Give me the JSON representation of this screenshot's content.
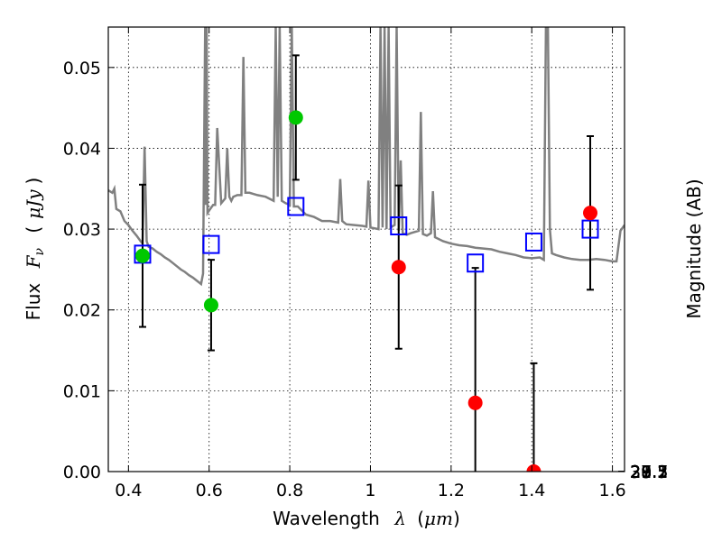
{
  "chart_data": {
    "type": "scatter",
    "xlabel": "Wavelength",
    "xlabel_symbol": "λ",
    "xlabel_unit_open": "(",
    "xlabel_unit": "μm",
    "xlabel_unit_close": ")",
    "ylabel": "Flux",
    "ylabel_symbol": "F",
    "ylabel_subscript": "ν",
    "ylabel_unit_open": "(",
    "ylabel_unit": "μJy",
    "ylabel_unit_close": ")",
    "y2label": "Magnitude (AB)",
    "xlim": [
      0.35,
      1.63
    ],
    "ylim": [
      0.0,
      0.055
    ],
    "grid": true,
    "x_ticks": [
      {
        "value": 0.4,
        "label": "0.4"
      },
      {
        "value": 0.6,
        "label": "0.6"
      },
      {
        "value": 0.8,
        "label": "0.8"
      },
      {
        "value": 1.0,
        "label": "1"
      },
      {
        "value": 1.2,
        "label": "1.2"
      },
      {
        "value": 1.4,
        "label": "1.4"
      },
      {
        "value": 1.6,
        "label": "1.6"
      }
    ],
    "y_ticks": [
      {
        "value": 0.0,
        "label": "0.00"
      },
      {
        "value": 0.01,
        "label": "0.01"
      },
      {
        "value": 0.02,
        "label": "0.02"
      },
      {
        "value": 0.03,
        "label": "0.03"
      },
      {
        "value": 0.04,
        "label": "0.04"
      },
      {
        "value": 0.05,
        "label": "0.05"
      }
    ],
    "y2_ticks": [
      {
        "mag": 27.1,
        "label": "27.1"
      },
      {
        "mag": 27.3,
        "label": "27.3"
      },
      {
        "mag": 27.5,
        "label": "27.5"
      },
      {
        "mag": 27.7,
        "label": "27.7"
      },
      {
        "mag": 28.0,
        "label": "28"
      },
      {
        "mag": 28.2,
        "label": "28.2"
      },
      {
        "mag": 28.5,
        "label": "28.5"
      },
      {
        "mag": 29.0,
        "label": "29"
      },
      {
        "mag": 29.5,
        "label": "29.5"
      },
      {
        "mag": 30.0,
        "label": "30"
      },
      {
        "mag": 31.0,
        "label": "31"
      }
    ],
    "series": [
      {
        "name": "model_spectrum",
        "kind": "line",
        "color": "#808080",
        "x": [
          0.35,
          0.36,
          0.365,
          0.37,
          0.38,
          0.39,
          0.4,
          0.41,
          0.42,
          0.43,
          0.435,
          0.44,
          0.445,
          0.45,
          0.46,
          0.47,
          0.48,
          0.49,
          0.5,
          0.51,
          0.52,
          0.53,
          0.54,
          0.55,
          0.56,
          0.57,
          0.58,
          0.585,
          0.59,
          0.592,
          0.594,
          0.596,
          0.6,
          0.61,
          0.615,
          0.62,
          0.63,
          0.64,
          0.645,
          0.65,
          0.655,
          0.66,
          0.67,
          0.68,
          0.685,
          0.69,
          0.7,
          0.72,
          0.74,
          0.76,
          0.765,
          0.77,
          0.775,
          0.78,
          0.79,
          0.8,
          0.805,
          0.81,
          0.82,
          0.84,
          0.86,
          0.88,
          0.9,
          0.92,
          0.925,
          0.93,
          0.94,
          0.96,
          0.98,
          0.99,
          0.995,
          1.0,
          1.02,
          1.025,
          1.03,
          1.035,
          1.04,
          1.045,
          1.05,
          1.06,
          1.065,
          1.07,
          1.075,
          1.08,
          1.09,
          1.1,
          1.12,
          1.125,
          1.13,
          1.14,
          1.15,
          1.155,
          1.16,
          1.18,
          1.2,
          1.22,
          1.24,
          1.26,
          1.28,
          1.3,
          1.32,
          1.34,
          1.36,
          1.38,
          1.4,
          1.42,
          1.43,
          1.435,
          1.44,
          1.445,
          1.45,
          1.46,
          1.48,
          1.5,
          1.52,
          1.54,
          1.56,
          1.58,
          1.6,
          1.61,
          1.62,
          1.63
        ],
        "y": [
          0.0348,
          0.0345,
          0.035,
          0.0325,
          0.0322,
          0.031,
          0.0305,
          0.0298,
          0.0292,
          0.0285,
          0.0282,
          0.0402,
          0.0285,
          0.0278,
          0.0276,
          0.0272,
          0.0269,
          0.0265,
          0.0262,
          0.0258,
          0.0254,
          0.025,
          0.0247,
          0.0243,
          0.024,
          0.0236,
          0.0232,
          0.0245,
          0.055,
          0.033,
          0.055,
          0.032,
          0.0323,
          0.033,
          0.033,
          0.0425,
          0.0332,
          0.0338,
          0.04,
          0.034,
          0.0335,
          0.034,
          0.0342,
          0.0342,
          0.0513,
          0.0345,
          0.0345,
          0.0342,
          0.034,
          0.0335,
          0.055,
          0.034,
          0.055,
          0.0335,
          0.0332,
          0.033,
          0.055,
          0.0328,
          0.0328,
          0.0318,
          0.0315,
          0.031,
          0.031,
          0.0308,
          0.0362,
          0.031,
          0.0306,
          0.0305,
          0.0304,
          0.0303,
          0.036,
          0.0302,
          0.03,
          0.055,
          0.0302,
          0.055,
          0.03,
          0.055,
          0.0302,
          0.0305,
          0.055,
          0.0298,
          0.0385,
          0.0295,
          0.0293,
          0.0295,
          0.0298,
          0.0445,
          0.0294,
          0.0292,
          0.0295,
          0.0347,
          0.029,
          0.0285,
          0.0282,
          0.028,
          0.0279,
          0.0277,
          0.0276,
          0.0275,
          0.0272,
          0.027,
          0.0268,
          0.0265,
          0.0264,
          0.0265,
          0.0262,
          0.055,
          0.055,
          0.03,
          0.027,
          0.0268,
          0.0265,
          0.0263,
          0.0262,
          0.0262,
          0.0263,
          0.0262,
          0.026,
          0.026,
          0.0298,
          0.0305
        ],
        "values_note": "approximate trace read from figure"
      },
      {
        "name": "model_photometry",
        "kind": "square",
        "color": "#0000ff",
        "x": [
          0.435,
          0.605,
          0.815,
          1.07,
          1.26,
          1.405,
          1.545
        ],
        "values": [
          0.0269,
          0.0281,
          0.0328,
          0.0304,
          0.0258,
          0.0284,
          0.03
        ]
      },
      {
        "name": "detections",
        "kind": "circle",
        "color": "#00c800",
        "x": [
          0.435,
          0.605,
          0.815
        ],
        "values": [
          0.0267,
          0.0206,
          0.0438
        ],
        "err": [
          0.0088,
          0.0056,
          0.0077
        ]
      },
      {
        "name": "upper_bands",
        "kind": "circle",
        "color": "#ff0000",
        "x": [
          1.07,
          1.26,
          1.405,
          1.545
        ],
        "values": [
          0.0253,
          0.0085,
          0.0,
          0.032
        ],
        "err": [
          0.0101,
          0.0167,
          0.0134,
          0.0095
        ]
      }
    ]
  }
}
